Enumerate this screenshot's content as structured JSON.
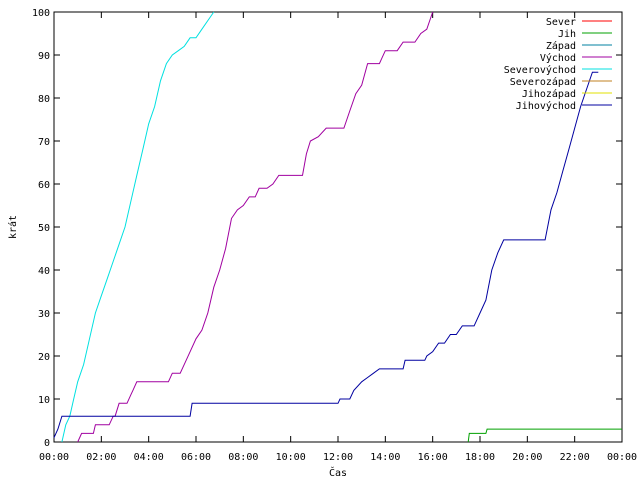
{
  "chart_data": {
    "type": "line",
    "xlabel": "Čas",
    "ylabel": "krát",
    "xlim": [
      "00:00",
      "24:00"
    ],
    "ylim": [
      0,
      100
    ],
    "x_ticks": [
      "00:00",
      "02:00",
      "04:00",
      "06:00",
      "08:00",
      "10:00",
      "12:00",
      "14:00",
      "16:00",
      "18:00",
      "20:00",
      "22:00",
      "00:00"
    ],
    "y_ticks": [
      0,
      10,
      20,
      30,
      40,
      50,
      60,
      70,
      80,
      90,
      100
    ],
    "grid": false,
    "legend_position": "top-right",
    "series": [
      {
        "name": "Sever",
        "color": "#ff0000",
        "points": []
      },
      {
        "name": "Jih",
        "color": "#00a000",
        "points": [
          [
            "17:30",
            0
          ],
          [
            "17:33",
            2
          ],
          [
            "18:15",
            2
          ],
          [
            "18:18",
            3
          ],
          [
            "24:00",
            3
          ]
        ]
      },
      {
        "name": "Západ",
        "color": "#0080a0",
        "points": []
      },
      {
        "name": "Východ",
        "color": "#a000a0",
        "points": [
          [
            "01:00",
            0
          ],
          [
            "01:10",
            2
          ],
          [
            "01:40",
            2
          ],
          [
            "01:45",
            4
          ],
          [
            "02:20",
            4
          ],
          [
            "02:30",
            6
          ],
          [
            "02:35",
            6
          ],
          [
            "02:45",
            9
          ],
          [
            "03:05",
            9
          ],
          [
            "03:15",
            11
          ],
          [
            "03:20",
            12
          ],
          [
            "03:30",
            14
          ],
          [
            "04:50",
            14
          ],
          [
            "05:00",
            16
          ],
          [
            "05:20",
            16
          ],
          [
            "05:30",
            18
          ],
          [
            "05:45",
            21
          ],
          [
            "06:00",
            24
          ],
          [
            "06:15",
            26
          ],
          [
            "06:30",
            30
          ],
          [
            "06:45",
            36
          ],
          [
            "07:00",
            40
          ],
          [
            "07:15",
            45
          ],
          [
            "07:30",
            52
          ],
          [
            "07:45",
            54
          ],
          [
            "08:00",
            55
          ],
          [
            "08:15",
            57
          ],
          [
            "08:30",
            57
          ],
          [
            "08:40",
            59
          ],
          [
            "09:00",
            59
          ],
          [
            "09:15",
            60
          ],
          [
            "09:30",
            62
          ],
          [
            "10:30",
            62
          ],
          [
            "10:40",
            67
          ],
          [
            "10:50",
            70
          ],
          [
            "11:10",
            71
          ],
          [
            "11:30",
            73
          ],
          [
            "12:15",
            73
          ],
          [
            "12:30",
            77
          ],
          [
            "12:45",
            81
          ],
          [
            "13:00",
            83
          ],
          [
            "13:15",
            88
          ],
          [
            "13:45",
            88
          ],
          [
            "14:00",
            91
          ],
          [
            "14:30",
            91
          ],
          [
            "14:45",
            93
          ],
          [
            "15:15",
            93
          ],
          [
            "15:30",
            95
          ],
          [
            "15:45",
            96
          ],
          [
            "16:00",
            100
          ]
        ]
      },
      {
        "name": "Severovýchod",
        "color": "#00e0e0",
        "points": [
          [
            "00:20",
            0
          ],
          [
            "00:30",
            4
          ],
          [
            "00:40",
            6
          ],
          [
            "00:50",
            10
          ],
          [
            "01:00",
            14
          ],
          [
            "01:15",
            18
          ],
          [
            "01:30",
            24
          ],
          [
            "01:45",
            30
          ],
          [
            "02:00",
            34
          ],
          [
            "02:15",
            38
          ],
          [
            "02:30",
            42
          ],
          [
            "02:45",
            46
          ],
          [
            "03:00",
            50
          ],
          [
            "03:15",
            56
          ],
          [
            "03:30",
            62
          ],
          [
            "03:45",
            68
          ],
          [
            "04:00",
            74
          ],
          [
            "04:15",
            78
          ],
          [
            "04:30",
            84
          ],
          [
            "04:45",
            88
          ],
          [
            "05:00",
            90
          ],
          [
            "05:15",
            91
          ],
          [
            "05:30",
            92
          ],
          [
            "05:45",
            94
          ],
          [
            "06:00",
            94
          ],
          [
            "06:15",
            96
          ],
          [
            "06:30",
            98
          ],
          [
            "06:45",
            100
          ]
        ]
      },
      {
        "name": "Severozápad",
        "color": "#c08020",
        "points": []
      },
      {
        "name": "Jihozápad",
        "color": "#e0e000",
        "points": []
      },
      {
        "name": "Jihovýchod",
        "color": "#0000a0",
        "points": [
          [
            "00:00",
            1
          ],
          [
            "00:10",
            3
          ],
          [
            "00:20",
            6
          ],
          [
            "05:45",
            6
          ],
          [
            "05:50",
            9
          ],
          [
            "12:00",
            9
          ],
          [
            "12:05",
            10
          ],
          [
            "12:30",
            10
          ],
          [
            "12:40",
            12
          ],
          [
            "13:00",
            14
          ],
          [
            "13:15",
            15
          ],
          [
            "13:30",
            16
          ],
          [
            "13:45",
            17
          ],
          [
            "14:45",
            17
          ],
          [
            "14:50",
            19
          ],
          [
            "15:40",
            19
          ],
          [
            "15:45",
            20
          ],
          [
            "16:00",
            21
          ],
          [
            "16:15",
            23
          ],
          [
            "16:30",
            23
          ],
          [
            "16:45",
            25
          ],
          [
            "17:00",
            25
          ],
          [
            "17:15",
            27
          ],
          [
            "17:45",
            27
          ],
          [
            "18:00",
            30
          ],
          [
            "18:15",
            33
          ],
          [
            "18:30",
            40
          ],
          [
            "18:45",
            44
          ],
          [
            "19:00",
            47
          ],
          [
            "20:45",
            47
          ],
          [
            "21:00",
            54
          ],
          [
            "21:15",
            58
          ],
          [
            "21:30",
            63
          ],
          [
            "21:45",
            68
          ],
          [
            "22:00",
            73
          ],
          [
            "22:15",
            78
          ],
          [
            "22:30",
            82
          ],
          [
            "22:45",
            86
          ],
          [
            "23:00",
            86
          ]
        ]
      }
    ]
  }
}
